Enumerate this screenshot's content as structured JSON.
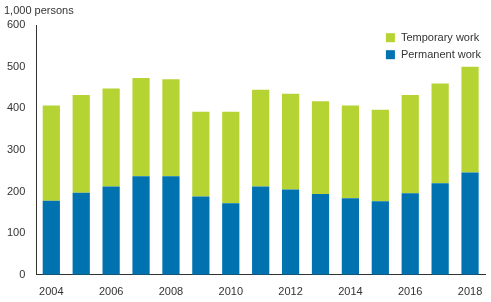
{
  "chart_data": {
    "type": "bar",
    "stacked": true,
    "y_label": "1,000 persons",
    "categories": [
      "2004",
      null,
      "2006",
      null,
      "2008",
      null,
      "2010",
      null,
      "2012",
      null,
      "2014",
      null,
      "2016",
      null,
      "2018"
    ],
    "series": [
      {
        "name": "Permanent work",
        "color": "#0072b0",
        "values": [
          178,
          197,
          212,
          237,
          237,
          188,
          172,
          212,
          205,
          194,
          184,
          177,
          196,
          220,
          246
        ]
      },
      {
        "name": "Temporary work",
        "color": "#b6d334",
        "values": [
          229,
          235,
          236,
          236,
          233,
          204,
          220,
          233,
          230,
          223,
          223,
          220,
          236,
          240,
          254
        ]
      }
    ],
    "ylim": [
      0,
      600
    ],
    "yticks": [
      0,
      100,
      200,
      300,
      400,
      500,
      600
    ],
    "grid": false,
    "legend": "top-right"
  }
}
